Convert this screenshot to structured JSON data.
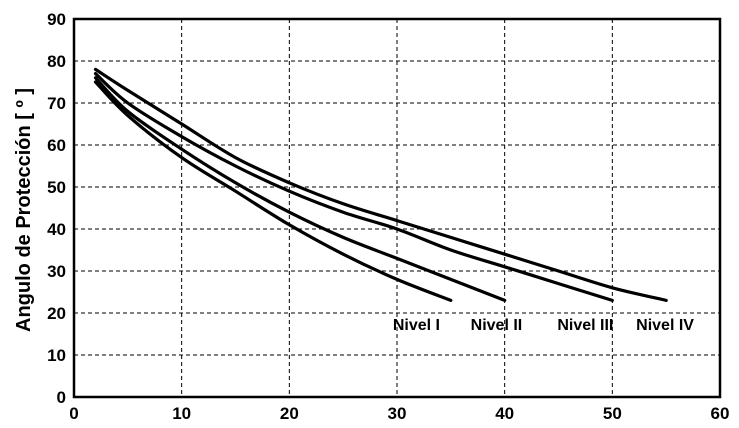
{
  "chart_data": {
    "type": "line",
    "title": "",
    "xlabel": "",
    "ylabel": "Angulo de Protección [ º ]",
    "xlim": [
      0,
      60
    ],
    "ylim": [
      0,
      90
    ],
    "xticks": [
      "0",
      "10",
      "20",
      "30",
      "40",
      "50",
      "60"
    ],
    "yticks": [
      "0",
      "10",
      "20",
      "30",
      "40",
      "50",
      "60",
      "70",
      "80",
      "90"
    ],
    "grid": true,
    "series": [
      {
        "name": "Nivel I",
        "x": [
          2,
          5,
          10,
          15,
          20,
          25,
          30,
          35
        ],
        "y": [
          75,
          67,
          57,
          49,
          41,
          34,
          28,
          23
        ]
      },
      {
        "name": "Nivel II",
        "x": [
          2,
          5,
          10,
          15,
          20,
          25,
          30,
          35,
          40
        ],
        "y": [
          76,
          68,
          59,
          51,
          44,
          38,
          33,
          28,
          23
        ]
      },
      {
        "name": "Nivel III",
        "x": [
          2,
          5,
          10,
          15,
          20,
          25,
          30,
          35,
          40,
          45,
          50
        ],
        "y": [
          77,
          70,
          62,
          55,
          49,
          44,
          40,
          35,
          31,
          27,
          23
        ]
      },
      {
        "name": "Nivel IV",
        "x": [
          2,
          5,
          10,
          15,
          20,
          25,
          30,
          35,
          40,
          45,
          50,
          55
        ],
        "y": [
          78,
          73,
          65,
          57,
          51,
          46,
          42,
          38,
          34,
          30,
          26,
          23
        ]
      }
    ]
  }
}
